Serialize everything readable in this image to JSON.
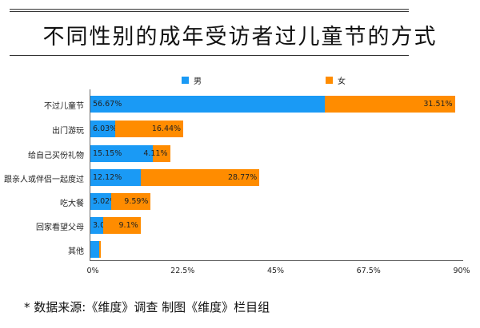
{
  "title": "不同性别的成年受访者过儿童节的方式",
  "legend": [
    {
      "label": "男",
      "color": "#1a9af5"
    },
    {
      "label": "女",
      "color": "#ff8c00"
    }
  ],
  "footer": "* 数据来源:《维度》调查  制图《维度》栏目组",
  "x_ticks": [
    "0%",
    "22.5%",
    "45%",
    "67.5%",
    "90%"
  ],
  "chart_data": {
    "type": "bar",
    "orientation": "horizontal",
    "stacked": true,
    "title": "不同性别的成年受访者过儿童节的方式",
    "xlabel": "",
    "ylabel": "",
    "xlim": [
      0,
      90
    ],
    "x_ticks": [
      0,
      22.5,
      45,
      67.5,
      90
    ],
    "legend_position": "top",
    "grid": false,
    "categories": [
      "不过儿童节",
      "出门游玩",
      "给自己买份礼物",
      "跟亲人或伴侣一起度过",
      "吃大餐",
      "回家看望父母",
      "其他"
    ],
    "series": [
      {
        "name": "男",
        "color": "#1a9af5",
        "values": [
          56.67,
          6.03,
          15.15,
          12.12,
          5.02,
          3.03,
          2.1
        ],
        "labels": [
          "56.67%",
          "6.03%",
          "15.15%",
          "12.12%",
          "5.02%",
          "3.03%",
          ""
        ]
      },
      {
        "name": "女",
        "color": "#ff8c00",
        "values": [
          31.51,
          16.44,
          4.11,
          28.77,
          9.59,
          9.1,
          0.4
        ],
        "labels": [
          "31.51%",
          "16.44%",
          "4.11%",
          "28.77%",
          "9.59%",
          "9.1%",
          ""
        ]
      }
    ]
  }
}
